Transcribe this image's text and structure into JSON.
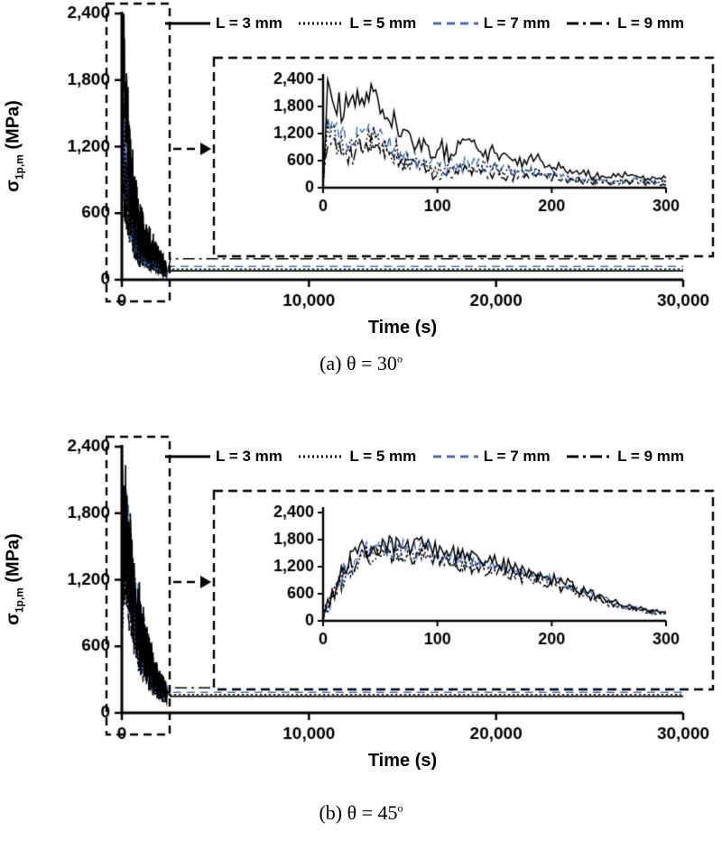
{
  "figure": {
    "background": "#ffffff",
    "line_black": "#000000",
    "line_blue": "#4472c4"
  },
  "chart_data": [
    {
      "type": "line",
      "panel": "a",
      "caption": "(a) θ = 30",
      "caption_sup": "o",
      "xlabel": "Time (s)",
      "ylabel_sigma": "σ",
      "ylabel_sub": "1p,m",
      "ylabel_unit": " (MPa)",
      "xlim": [
        0,
        30000
      ],
      "ylim": [
        0,
        2400
      ],
      "xticks": [
        0,
        10000,
        20000,
        30000
      ],
      "xtick_labels": [
        "0",
        "10,000",
        "20,000",
        "30,000"
      ],
      "yticks": [
        0,
        600,
        1200,
        1800,
        2400
      ],
      "ytick_labels": [
        "0",
        "600",
        "1,200",
        "1,800",
        "2,400"
      ],
      "grid": false,
      "legend_position": "top",
      "series": [
        {
          "key": "l3",
          "name": "L = 3 mm",
          "color": "#000000",
          "dash": "solid",
          "steady": 80,
          "main_scale": 1.0,
          "inset_scale": 1.0
        },
        {
          "key": "l5",
          "name": "L = 5 mm",
          "color": "#000000",
          "dash": "dotted",
          "steady": 95,
          "main_scale": 0.55,
          "inset_scale": 0.55
        },
        {
          "key": "l7",
          "name": "L = 7 mm",
          "color": "#4472c4",
          "dash": "dashed",
          "steady": 120,
          "main_scale": 0.62,
          "inset_scale": 0.6
        },
        {
          "key": "l9",
          "name": "L = 9 mm",
          "color": "#000000",
          "dash": "dashdot",
          "steady": 190,
          "main_scale": 0.45,
          "inset_scale": 0.42
        }
      ],
      "main_envelope": [
        [
          0,
          200
        ],
        [
          40,
          2400
        ],
        [
          120,
          2000
        ],
        [
          250,
          1500
        ],
        [
          400,
          1100
        ],
        [
          600,
          800
        ],
        [
          900,
          500
        ],
        [
          1300,
          350
        ],
        [
          1800,
          260
        ],
        [
          2300,
          120
        ]
      ],
      "inset": {
        "xlim": [
          0,
          300
        ],
        "ylim": [
          0,
          2400
        ],
        "xticks": [
          0,
          100,
          200,
          300
        ],
        "xtick_labels": [
          "0",
          "100",
          "200",
          "300"
        ],
        "yticks": [
          0,
          600,
          1200,
          1800,
          2400
        ],
        "ytick_labels": [
          "0",
          "600",
          "1,200",
          "1,800",
          "2,400"
        ],
        "profile": [
          [
            0,
            60
          ],
          [
            4,
            2350
          ],
          [
            15,
            1750
          ],
          [
            30,
            1850
          ],
          [
            45,
            2050
          ],
          [
            60,
            1500
          ],
          [
            75,
            1150
          ],
          [
            90,
            850
          ],
          [
            110,
            800
          ],
          [
            130,
            900
          ],
          [
            150,
            750
          ],
          [
            170,
            550
          ],
          [
            190,
            650
          ],
          [
            210,
            400
          ],
          [
            230,
            300
          ],
          [
            250,
            250
          ],
          [
            270,
            300
          ],
          [
            285,
            200
          ],
          [
            300,
            220
          ]
        ],
        "noise_start": 340,
        "noise_end": 90
      }
    },
    {
      "type": "line",
      "panel": "b",
      "caption": "(b) θ = 45",
      "caption_sup": "o",
      "xlabel": "Time (s)",
      "ylabel_sigma": "σ",
      "ylabel_sub": "1p,m",
      "ylabel_unit": " (MPa)",
      "xlim": [
        0,
        30000
      ],
      "ylim": [
        0,
        2400
      ],
      "xticks": [
        0,
        10000,
        20000,
        30000
      ],
      "xtick_labels": [
        "0",
        "10,000",
        "20,000",
        "30,000"
      ],
      "yticks": [
        0,
        600,
        1200,
        1800,
        2400
      ],
      "ytick_labels": [
        "0",
        "600",
        "1,200",
        "1,800",
        "2,400"
      ],
      "grid": false,
      "legend_position": "top",
      "series": [
        {
          "key": "l3",
          "name": "L = 3 mm",
          "color": "#000000",
          "dash": "solid",
          "steady": 150,
          "main_scale": 1.0,
          "inset_scale": 1.0
        },
        {
          "key": "l5",
          "name": "L = 5 mm",
          "color": "#000000",
          "dash": "dotted",
          "steady": 165,
          "main_scale": 0.85,
          "inset_scale": 0.9
        },
        {
          "key": "l7",
          "name": "L = 7 mm",
          "color": "#4472c4",
          "dash": "dashed",
          "steady": 185,
          "main_scale": 0.92,
          "inset_scale": 0.95
        },
        {
          "key": "l9",
          "name": "L = 9 mm",
          "color": "#000000",
          "dash": "dashdot",
          "steady": 225,
          "main_scale": 0.8,
          "inset_scale": 0.88
        }
      ],
      "main_envelope": [
        [
          0,
          120
        ],
        [
          25,
          2350
        ],
        [
          60,
          1300
        ],
        [
          120,
          1750
        ],
        [
          250,
          1650
        ],
        [
          400,
          1450
        ],
        [
          600,
          1150
        ],
        [
          850,
          900
        ],
        [
          1100,
          700
        ],
        [
          1500,
          450
        ],
        [
          1900,
          300
        ],
        [
          2300,
          200
        ]
      ],
      "inset": {
        "xlim": [
          0,
          300
        ],
        "ylim": [
          0,
          2400
        ],
        "xticks": [
          0,
          100,
          200,
          300
        ],
        "xtick_labels": [
          "0",
          "100",
          "200",
          "300"
        ],
        "yticks": [
          0,
          600,
          1200,
          1800,
          2400
        ],
        "ytick_labels": [
          "0",
          "600",
          "1,200",
          "1,800",
          "2,400"
        ],
        "profile": [
          [
            0,
            80
          ],
          [
            8,
            600
          ],
          [
            20,
            1200
          ],
          [
            35,
            1600
          ],
          [
            50,
            1700
          ],
          [
            70,
            1650
          ],
          [
            90,
            1700
          ],
          [
            110,
            1500
          ],
          [
            130,
            1400
          ],
          [
            150,
            1300
          ],
          [
            170,
            1150
          ],
          [
            190,
            1000
          ],
          [
            210,
            850
          ],
          [
            230,
            650
          ],
          [
            250,
            450
          ],
          [
            270,
            300
          ],
          [
            285,
            220
          ],
          [
            300,
            200
          ]
        ],
        "noise_start": 260,
        "noise_end": 80
      }
    }
  ]
}
